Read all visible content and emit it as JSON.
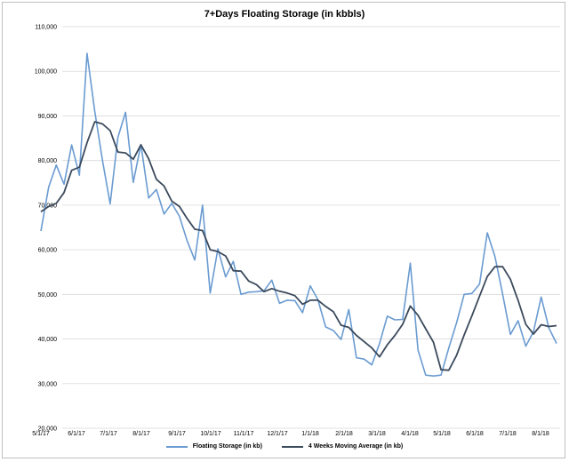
{
  "chart_data": {
    "type": "line",
    "title": "7+Days Floating Storage (in kbbls)",
    "xlabel": "",
    "ylabel": "",
    "ylim": [
      20000,
      110000
    ],
    "y_ticks": [
      "110,000",
      "100,000",
      "90,000",
      "80,000",
      "70,000",
      "60,000",
      "50,000",
      "40,000",
      "30,000",
      "20,000"
    ],
    "x_ticks": [
      "5/1/17",
      "6/1/17",
      "7/1/17",
      "8/1/17",
      "9/1/17",
      "10/1/17",
      "11/1/17",
      "12/1/17",
      "1/1/18",
      "2/1/18",
      "3/1/18",
      "4/1/18",
      "5/1/18",
      "6/1/18",
      "7/1/18",
      "8/1/18"
    ],
    "grid": true,
    "legend_position": "bottom",
    "series": [
      {
        "name": "Floating Storage (in kb)",
        "color": "#6a9bd1",
        "values": [
          64200,
          74000,
          79000,
          74700,
          83500,
          76700,
          104000,
          91000,
          80000,
          70300,
          85200,
          90800,
          75100,
          83600,
          71600,
          73500,
          68000,
          70400,
          67500,
          62000,
          57700,
          70000,
          50300,
          60200,
          53900,
          57400,
          50000,
          50500,
          50600,
          50800,
          53200,
          48000,
          48700,
          48600,
          45900,
          51900,
          48800,
          42700,
          41900,
          39900,
          46600,
          35800,
          35500,
          34200,
          39000,
          45100,
          44300,
          44400,
          57000,
          37500,
          31900,
          31700,
          31900,
          38000,
          43600,
          50000,
          50200,
          52300,
          63800,
          58500,
          50000,
          41000,
          44100,
          38400,
          41600,
          49400,
          42500,
          39000
        ]
      },
      {
        "name": "4 Weeks Moving Average (in kb)",
        "color": "#3b4a5c",
        "values": [
          68500,
          69700,
          70400,
          72800,
          77800,
          78500,
          84000,
          88700,
          88200,
          86700,
          81900,
          81700,
          80300,
          83500,
          80400,
          75800,
          74300,
          70900,
          69700,
          67000,
          64600,
          64300,
          60000,
          59600,
          58600,
          55300,
          55200,
          53000,
          52200,
          50600,
          51300,
          50700,
          50300,
          49700,
          47800,
          48700,
          48700,
          47300,
          46100,
          43100,
          42600,
          40800,
          39400,
          38000,
          36000,
          38700,
          40800,
          43300,
          47400,
          45300,
          42300,
          39300,
          33100,
          33000,
          36300,
          40900,
          45200,
          49600,
          54000,
          56200,
          56200,
          53400,
          48700,
          43300,
          41100,
          43200,
          42800,
          43000
        ]
      }
    ]
  }
}
